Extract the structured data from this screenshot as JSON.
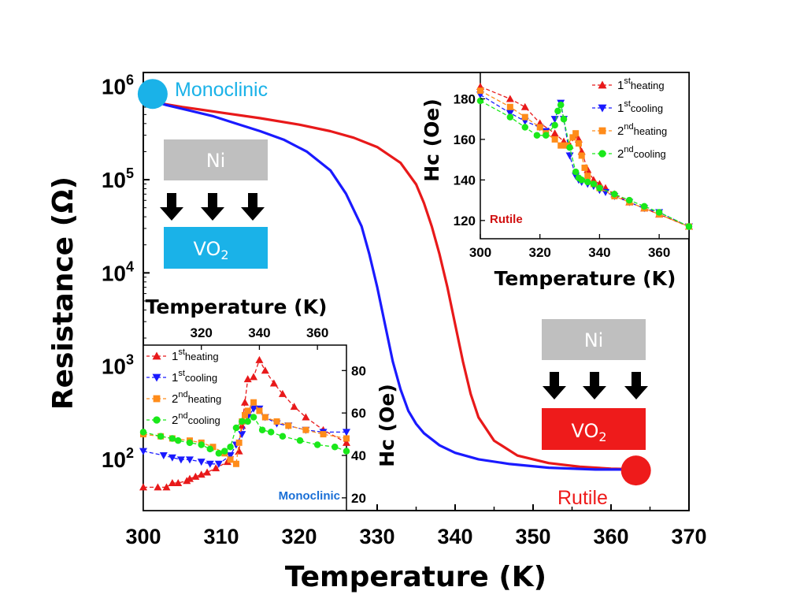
{
  "chart_data": [
    {
      "type": "line",
      "xlabel": "Temperature (K)",
      "ylabel": "Resistance (Ω)",
      "yscale": "log",
      "xlim": [
        300,
        370
      ],
      "ylim_exponent": [
        1.45,
        6.15
      ],
      "x_ticks": [
        "300",
        "310",
        "320",
        "330",
        "340",
        "350",
        "360",
        "370"
      ],
      "y_ticks": [
        {
          "base": "10",
          "exp": "2",
          "value": 2
        },
        {
          "base": "10",
          "exp": "3",
          "value": 3
        },
        {
          "base": "10",
          "exp": "4",
          "value": 4
        },
        {
          "base": "10",
          "exp": "5",
          "value": 5
        },
        {
          "base": "10",
          "exp": "6",
          "value": 6
        }
      ],
      "series": [
        {
          "name": "heating",
          "color": "#e8191a",
          "x": [
            300,
            305,
            310,
            315,
            320,
            324,
            327,
            330,
            333,
            335,
            336,
            337,
            338,
            339,
            340,
            341,
            342,
            343,
            345,
            348,
            352,
            356,
            360,
            365
          ],
          "logy": [
            5.85,
            5.78,
            5.72,
            5.66,
            5.59,
            5.52,
            5.45,
            5.35,
            5.18,
            4.95,
            4.75,
            4.5,
            4.2,
            3.85,
            3.45,
            3.05,
            2.7,
            2.45,
            2.2,
            2.04,
            1.96,
            1.92,
            1.9,
            1.89
          ]
        },
        {
          "name": "cooling",
          "color": "#1a1aff",
          "x": [
            300,
            303,
            306,
            309,
            312,
            315,
            318,
            321,
            324,
            326,
            328,
            329,
            330,
            331,
            332,
            333,
            334,
            335,
            336,
            338,
            340,
            343,
            347,
            352,
            358,
            365
          ],
          "logy": [
            5.87,
            5.8,
            5.74,
            5.68,
            5.6,
            5.52,
            5.43,
            5.3,
            5.1,
            4.85,
            4.5,
            4.2,
            3.85,
            3.45,
            3.05,
            2.75,
            2.52,
            2.38,
            2.28,
            2.15,
            2.07,
            2.0,
            1.95,
            1.91,
            1.89,
            1.89
          ]
        }
      ],
      "annotations": {
        "monoclinic_label": "Monoclinic",
        "rutile_label": "Rutile",
        "monoclinic_marker": {
          "x": 301.2,
          "logy": 5.92,
          "color": "#1ab2e8"
        },
        "rutile_marker": {
          "x": 363.2,
          "logy": 1.88,
          "color": "#ee1b1b"
        }
      },
      "schematic_left": {
        "top": "Ni",
        "bottom": "VO",
        "sub": "2",
        "bottom_color": "#1ab2e8",
        "top_color": "#bfbfbf"
      },
      "schematic_right": {
        "top": "Ni",
        "bottom": "VO",
        "sub": "2",
        "bottom_color": "#ee1b1b",
        "top_color": "#bfbfbf"
      }
    },
    {
      "type": "line",
      "title": "inset-bottom-left",
      "xlabel": "Temperature (K)",
      "ylabel": "Hc (Oe)",
      "xlim": [
        300,
        370
      ],
      "ylim": [
        14,
        92
      ],
      "x_ticks": [
        "320",
        "340",
        "360"
      ],
      "y_ticks": [
        "20",
        "40",
        "60",
        "80"
      ],
      "phase_label": "Monoclinic",
      "series": [
        {
          "name": "1st heating",
          "sup": "st",
          "num": "1",
          "suffix": "heating",
          "color": "#e8191a",
          "marker": "triangle-up",
          "x": [
            300,
            305,
            308,
            310,
            312,
            315,
            316,
            318,
            320,
            322,
            325,
            329,
            333,
            334,
            335,
            336,
            338,
            340,
            342,
            345,
            348,
            352,
            356,
            362,
            370
          ],
          "y": [
            25,
            25,
            25,
            27,
            27,
            28,
            29,
            30,
            31,
            32,
            34,
            37,
            42,
            54,
            65,
            76,
            77,
            85,
            80,
            74,
            69,
            63,
            58,
            52,
            46
          ]
        },
        {
          "name": "1st cooling",
          "sup": "st",
          "num": "1",
          "suffix": "cooling",
          "color": "#1a1aff",
          "marker": "triangle-down",
          "x": [
            300,
            307,
            310,
            313,
            316,
            320,
            323,
            326,
            330,
            332,
            334,
            336,
            338,
            340,
            342,
            346,
            350,
            356,
            362,
            370
          ],
          "y": [
            42,
            40,
            39,
            38,
            38,
            37,
            36,
            36,
            40,
            45,
            50,
            58,
            62,
            62,
            58,
            55,
            54,
            52,
            51,
            51
          ]
        },
        {
          "name": "2nd heating",
          "sup": "nd",
          "num": "2",
          "suffix": "heating",
          "color": "#ff8c1a",
          "marker": "square",
          "x": [
            300,
            306,
            310,
            316,
            320,
            324,
            328,
            330,
            332,
            333,
            334,
            335,
            336,
            338,
            340,
            342,
            346,
            350,
            356,
            362,
            370
          ],
          "y": [
            50,
            49,
            48,
            47,
            46,
            44,
            41,
            38,
            36,
            46,
            56,
            59,
            61,
            65,
            61,
            58,
            56,
            54,
            52,
            50,
            48
          ]
        },
        {
          "name": "2nd cooling",
          "sup": "nd",
          "num": "2",
          "suffix": "cooling",
          "color": "#1ae81a",
          "marker": "circle",
          "x": [
            300,
            306,
            310,
            312,
            316,
            320,
            323,
            326,
            328,
            330,
            332,
            334,
            336,
            338,
            341,
            344,
            348,
            354,
            360,
            366,
            370
          ],
          "y": [
            51,
            49,
            48,
            47,
            46,
            45,
            43,
            41,
            42,
            44,
            53,
            56,
            56,
            58,
            52,
            51,
            49,
            47,
            45,
            44,
            42
          ]
        }
      ]
    },
    {
      "type": "line",
      "title": "inset-top-right",
      "xlabel": "Temperature (K)",
      "ylabel": "Hc (Oe)",
      "xlim": [
        300,
        370
      ],
      "ylim": [
        111,
        193
      ],
      "x_ticks": [
        "300",
        "320",
        "340",
        "360"
      ],
      "y_ticks": [
        "120",
        "140",
        "160",
        "180"
      ],
      "phase_label": "Rutile",
      "series": [
        {
          "name": "1st heating",
          "sup": "st",
          "num": "1",
          "suffix": "heating",
          "color": "#e8191a",
          "marker": "triangle-up",
          "x": [
            300,
            310,
            315,
            320,
            325,
            328,
            330,
            332,
            333,
            334,
            336,
            338,
            340,
            342,
            345,
            350,
            355,
            360,
            370
          ],
          "y": [
            186,
            180,
            176,
            168,
            163,
            159,
            157,
            162,
            160,
            154,
            145,
            140,
            138,
            136,
            133,
            129,
            126,
            123,
            117
          ]
        },
        {
          "name": "1st cooling",
          "sup": "st",
          "num": "1",
          "suffix": "cooling",
          "color": "#1a1aff",
          "marker": "triangle-down",
          "x": [
            300,
            310,
            315,
            320,
            322,
            325,
            327,
            328,
            330,
            332,
            333,
            334,
            336,
            338,
            340,
            342,
            345,
            350,
            355,
            360,
            370
          ],
          "y": [
            182,
            173,
            169,
            166,
            164,
            170,
            178,
            170,
            152,
            142,
            140,
            139,
            138,
            137,
            135,
            134,
            132,
            129,
            126,
            124,
            117
          ]
        },
        {
          "name": "2nd heating",
          "sup": "nd",
          "num": "2",
          "suffix": "heating",
          "color": "#ff8c1a",
          "marker": "square",
          "x": [
            300,
            310,
            315,
            320,
            322,
            325,
            327,
            329,
            331,
            332,
            333,
            334,
            335,
            336,
            338,
            340,
            345,
            350,
            355,
            360,
            370
          ],
          "y": [
            184,
            176,
            171,
            166,
            163,
            160,
            157,
            157,
            161,
            163,
            158,
            152,
            146,
            142,
            138,
            136,
            132,
            129,
            126,
            123,
            117
          ]
        },
        {
          "name": "2nd cooling",
          "sup": "nd",
          "num": "2",
          "suffix": "cooling",
          "color": "#1ae81a",
          "marker": "circle",
          "x": [
            300,
            310,
            315,
            319,
            322,
            325,
            326,
            327,
            328,
            330,
            332,
            333,
            334,
            336,
            338,
            340,
            345,
            350,
            355,
            360,
            370
          ],
          "y": [
            179,
            171,
            166,
            162,
            162,
            167,
            174,
            177,
            170,
            156,
            144,
            141,
            140,
            139,
            138,
            136,
            133,
            130,
            127,
            124,
            117
          ]
        }
      ]
    }
  ]
}
